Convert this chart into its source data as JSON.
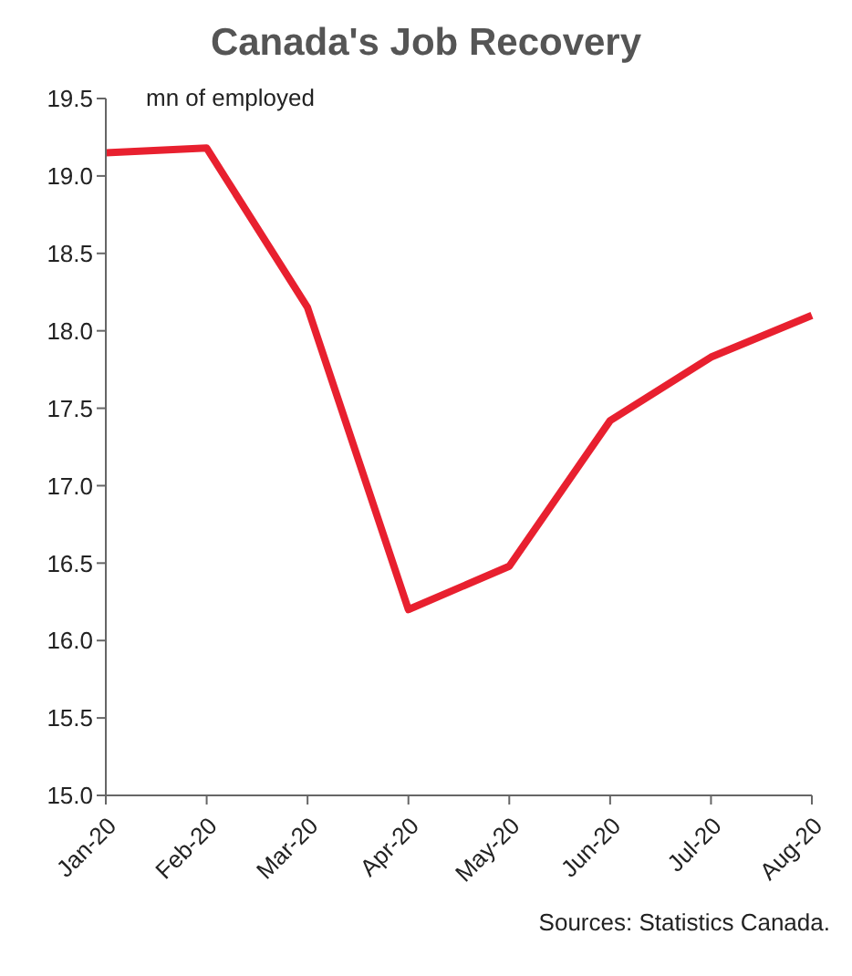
{
  "chart_data": {
    "type": "line",
    "title": "Canada's Job Recovery",
    "ylabel": "mn of employed",
    "categories": [
      "Jan-20",
      "Feb-20",
      "Mar-20",
      "Apr-20",
      "May-20",
      "Jun-20",
      "Jul-20",
      "Aug-20"
    ],
    "series": [
      {
        "color": "#e8202f",
        "values": [
          19.15,
          19.18,
          18.15,
          16.2,
          16.48,
          17.42,
          17.83,
          18.1
        ]
      }
    ],
    "ylim": [
      15,
      19.5
    ],
    "yticks": [
      {
        "value": 15,
        "label": "15.0"
      },
      {
        "value": 15.5,
        "label": "15.5"
      },
      {
        "value": 16,
        "label": "16.0"
      },
      {
        "value": 16.5,
        "label": "16.5"
      },
      {
        "value": 17,
        "label": "17.0"
      },
      {
        "value": 17.5,
        "label": "17.5"
      },
      {
        "value": 18,
        "label": "18.0"
      },
      {
        "value": 18.5,
        "label": "18.5"
      },
      {
        "value": 19,
        "label": "19.0"
      },
      {
        "value": 19.5,
        "label": "19.5"
      }
    ],
    "grid": false,
    "legend": false,
    "marker": "none",
    "line_style": "solid",
    "annotations": [
      "Sources: Statistics Canada."
    ]
  }
}
